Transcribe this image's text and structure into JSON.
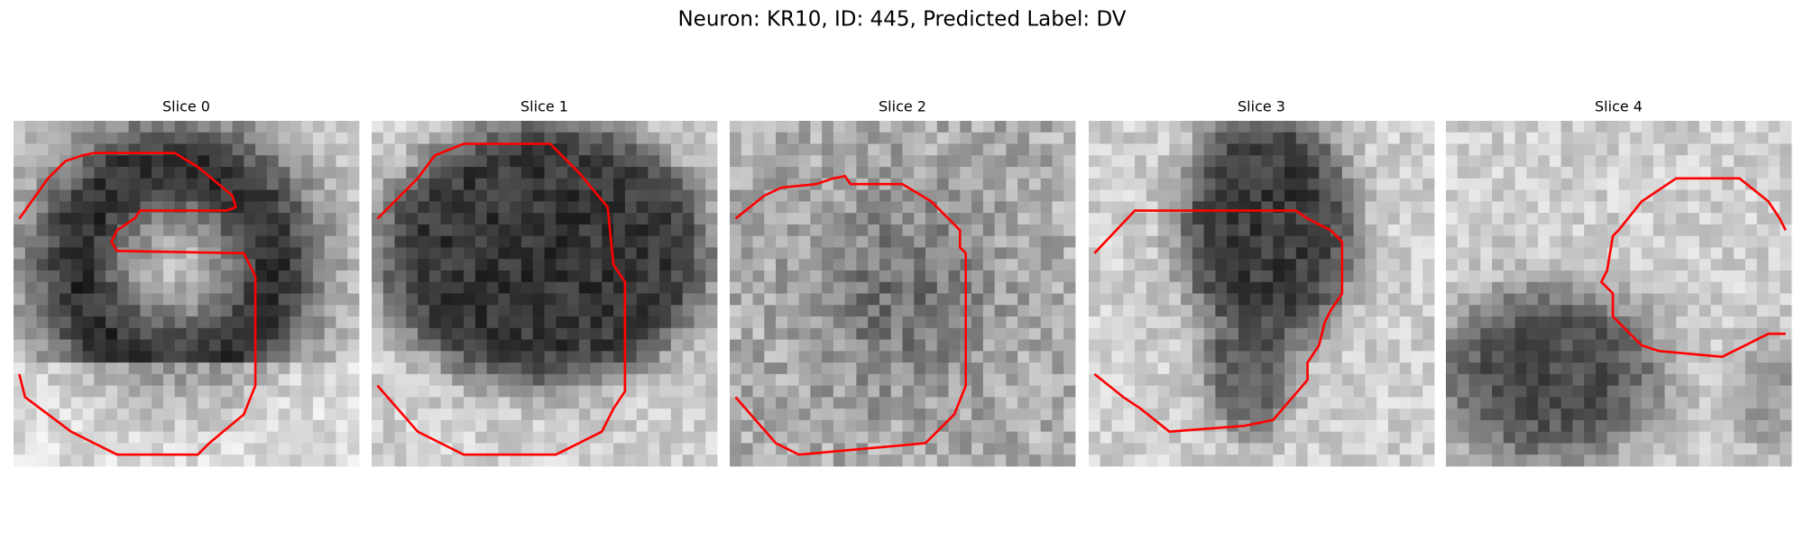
{
  "title": "Neuron: KR10, ID: 445, Predicted Label: DV",
  "panels": [
    {
      "title": "Slice 0"
    },
    {
      "title": "Slice 1"
    },
    {
      "title": "Slice 2"
    },
    {
      "title": "Slice 3"
    },
    {
      "title": "Slice 4"
    }
  ]
}
